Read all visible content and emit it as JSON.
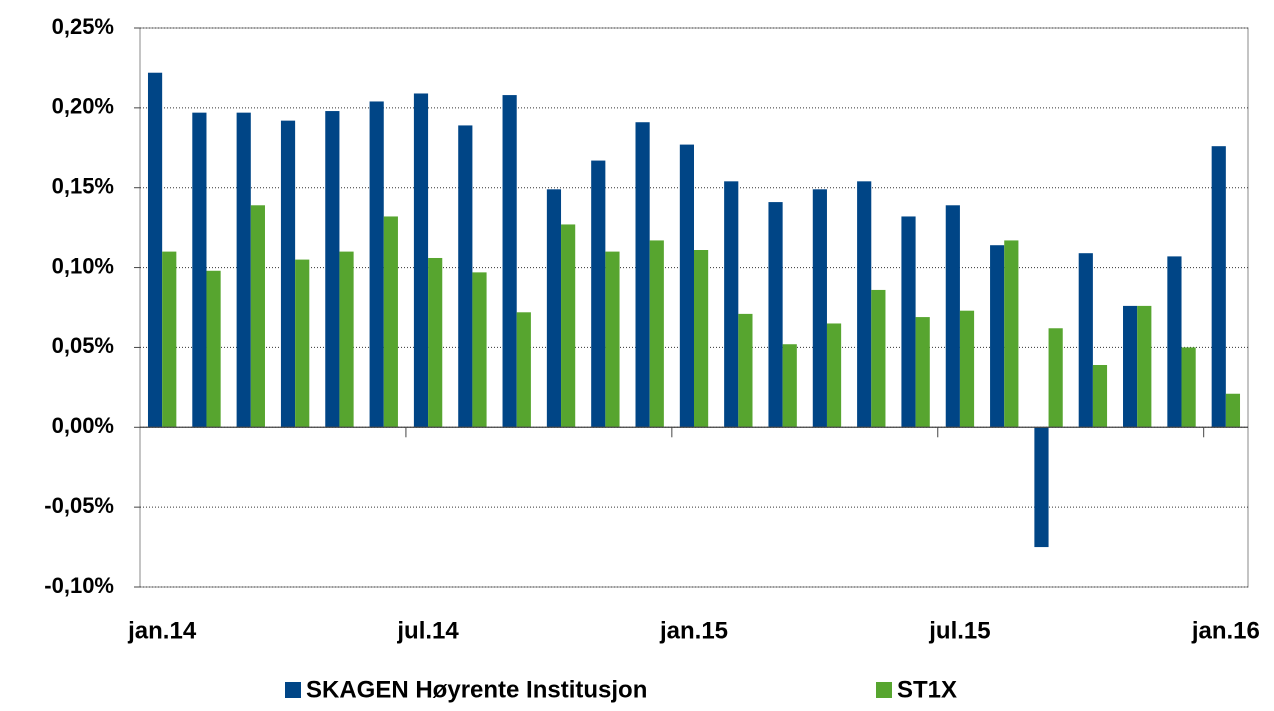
{
  "chart_data": {
    "type": "bar",
    "categories": [
      "jan.14",
      null,
      null,
      null,
      null,
      null,
      "jul.14",
      null,
      null,
      null,
      null,
      null,
      "jan.15",
      null,
      null,
      null,
      null,
      null,
      "jul.15",
      null,
      null,
      null,
      null,
      null,
      "jan.16"
    ],
    "series": [
      {
        "name": "SKAGEN Høyrente Institusjon",
        "color": "#004586",
        "values": [
          0.222,
          0.197,
          0.197,
          0.192,
          0.198,
          0.204,
          0.209,
          0.189,
          0.208,
          0.149,
          0.167,
          0.191,
          0.177,
          0.154,
          0.141,
          0.149,
          0.154,
          0.132,
          0.139,
          0.114,
          -0.075,
          0.109,
          0.076,
          0.107,
          0.176
        ]
      },
      {
        "name": "ST1X",
        "color": "#57a52f",
        "values": [
          0.11,
          0.098,
          0.139,
          0.105,
          0.11,
          0.132,
          0.106,
          0.097,
          0.072,
          0.127,
          0.11,
          0.117,
          0.111,
          0.071,
          0.052,
          0.065,
          0.086,
          0.069,
          0.073,
          0.117,
          0.062,
          0.039,
          0.076,
          0.05,
          0.021
        ]
      }
    ],
    "ylim": [
      -0.1,
      0.25
    ],
    "yticks": [
      {
        "value": -0.1,
        "label": "-0,10%"
      },
      {
        "value": -0.05,
        "label": "-0,05%"
      },
      {
        "value": 0,
        "label": "0,00%"
      },
      {
        "value": 0.05,
        "label": "0,05%"
      },
      {
        "value": 0.1,
        "label": "0,10%"
      },
      {
        "value": 0.15,
        "label": "0,15%"
      },
      {
        "value": 0.2,
        "label": "0,20%"
      },
      {
        "value": 0.25,
        "label": "0,25%"
      }
    ],
    "grid": true,
    "legend": "bottom"
  }
}
